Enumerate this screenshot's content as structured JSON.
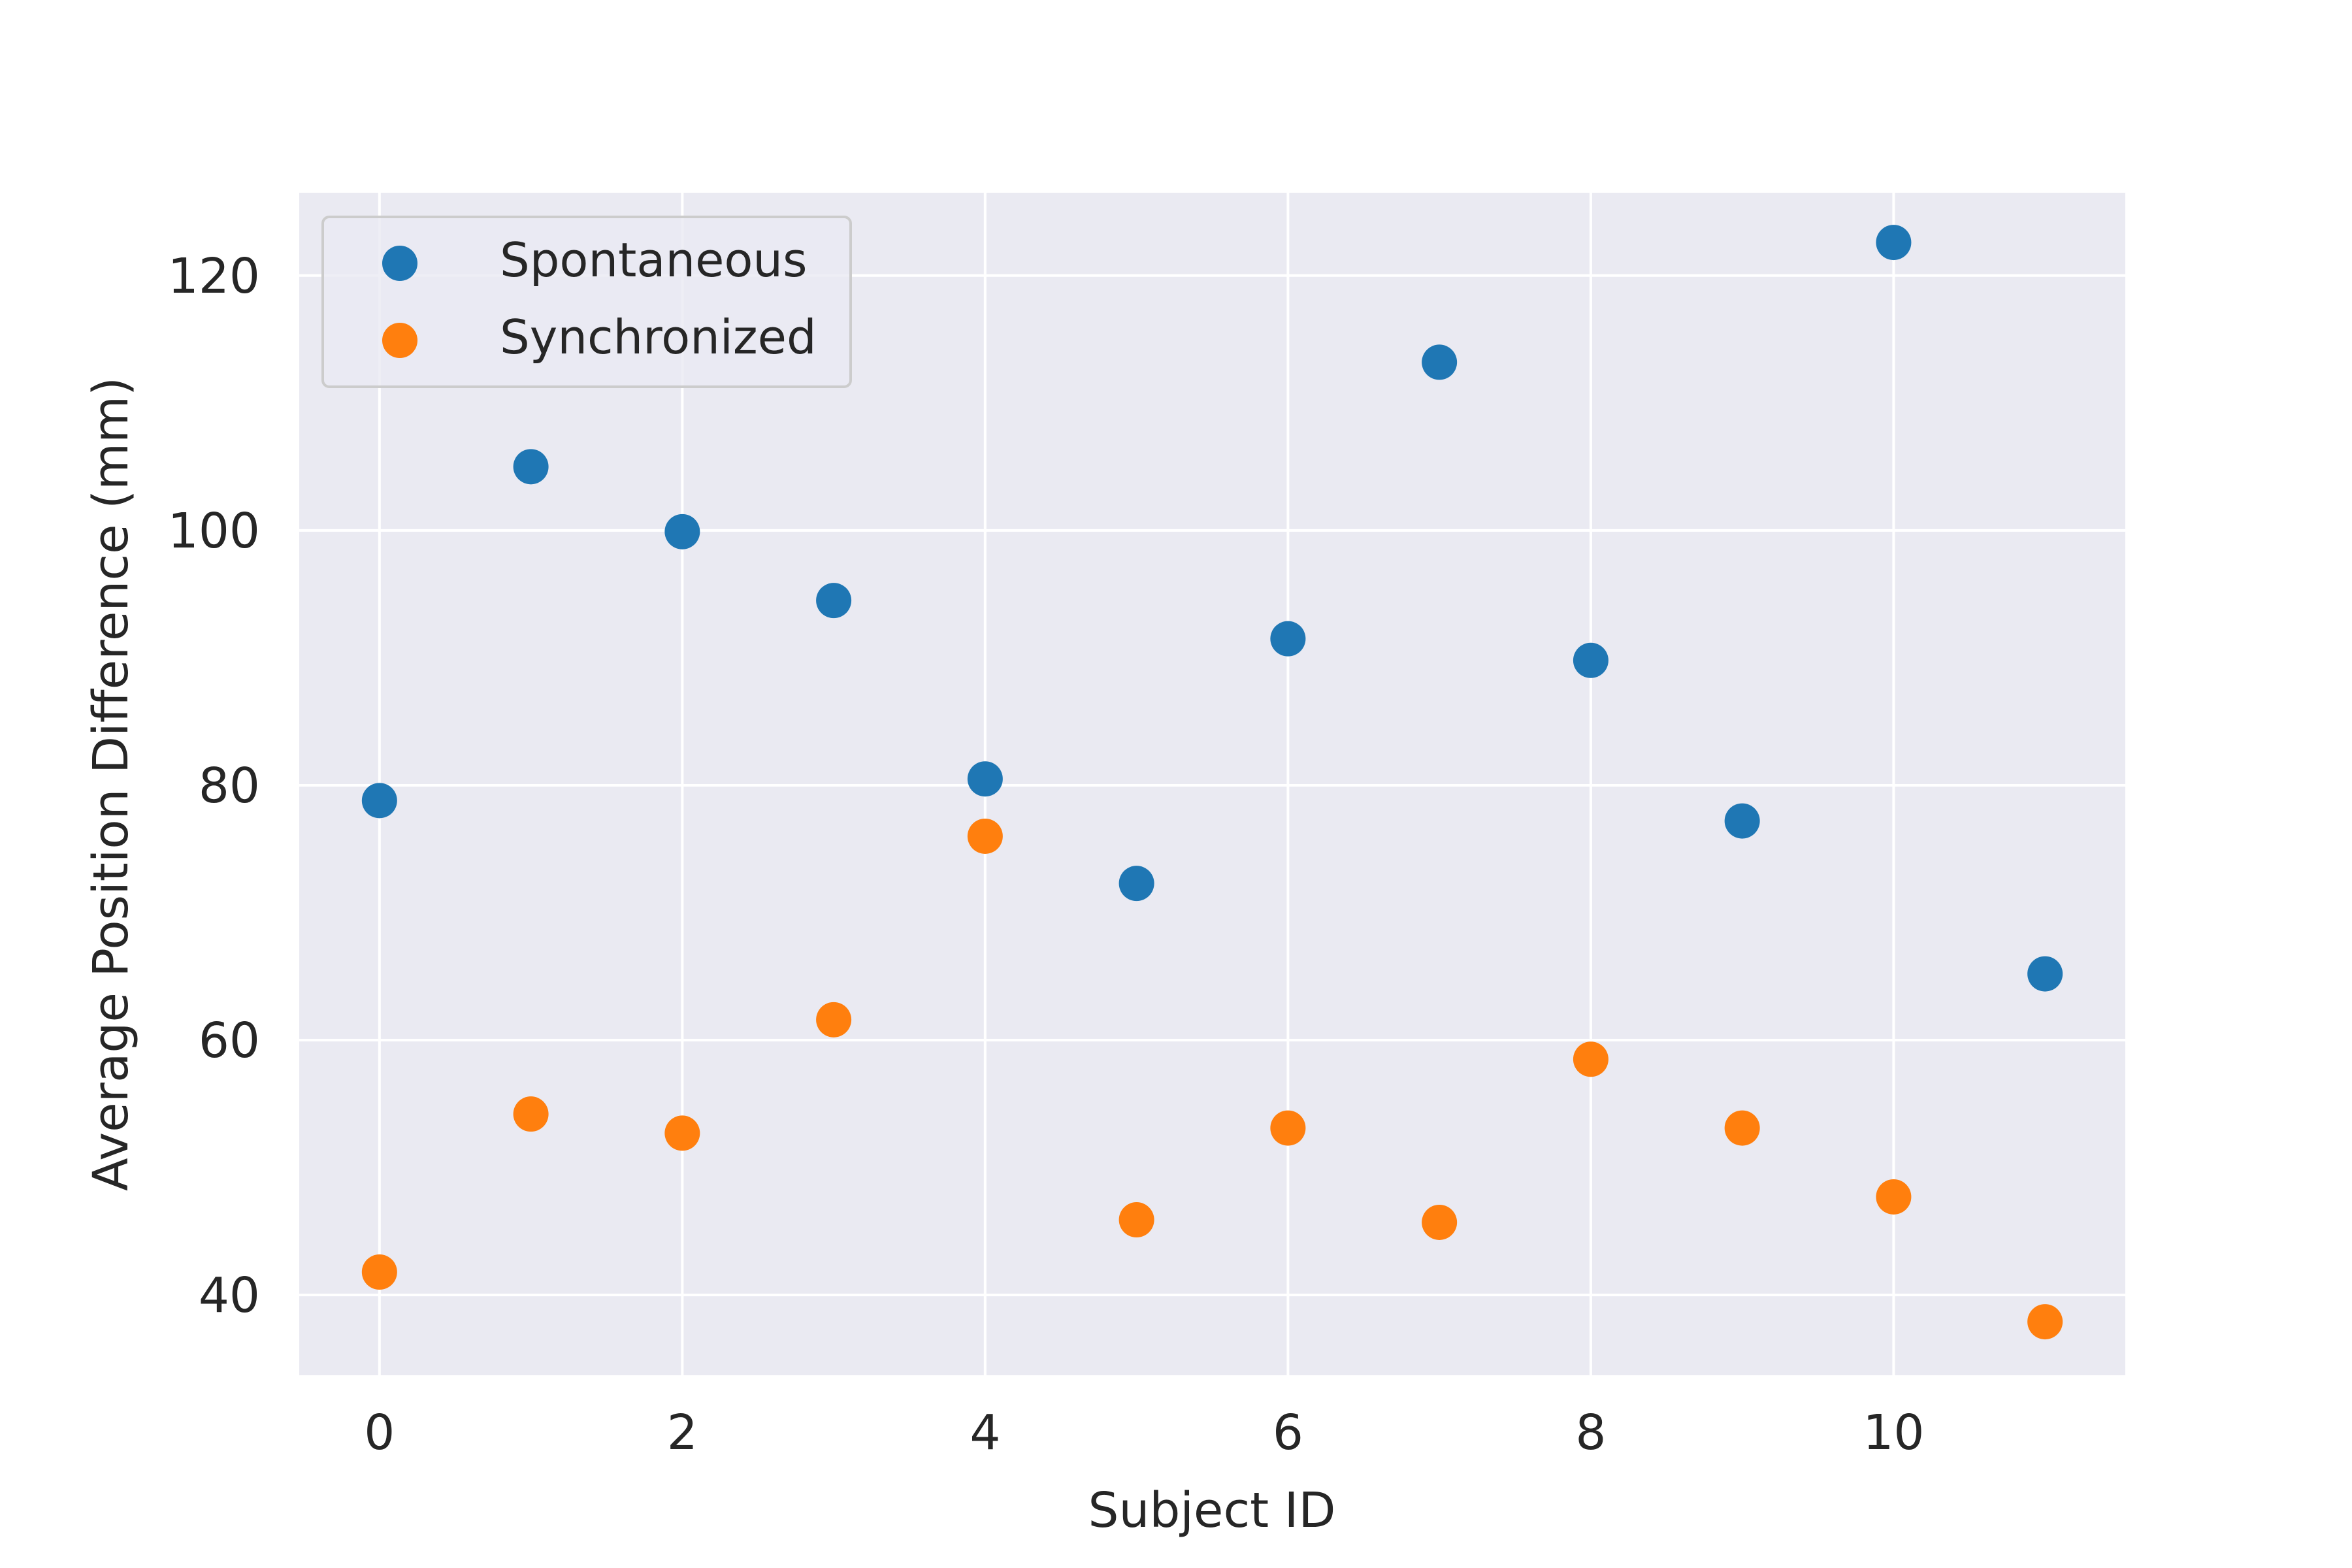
{
  "chart_data": {
    "type": "scatter",
    "title": "",
    "xlabel": "Subject ID",
    "ylabel": "Average Position Difference (mm)",
    "xlim": [
      -0.53,
      11.53
    ],
    "ylim": [
      33.7,
      126.5
    ],
    "xticks": [
      0,
      2,
      4,
      6,
      8,
      10
    ],
    "yticks": [
      40,
      60,
      80,
      100,
      120
    ],
    "grid": true,
    "legend_position": "top-left",
    "background": "#eaeaf2",
    "series": [
      {
        "name": "Spontaneous",
        "color": "#1f77b4",
        "x": [
          0,
          1,
          2,
          3,
          4,
          5,
          6,
          7,
          8,
          9,
          10,
          11
        ],
        "y": [
          78.8,
          105.0,
          99.9,
          94.5,
          80.5,
          72.3,
          91.5,
          113.2,
          89.8,
          77.2,
          122.6,
          65.2
        ]
      },
      {
        "name": "Synchronized",
        "color": "#ff7f0e",
        "x": [
          0,
          1,
          2,
          3,
          4,
          5,
          6,
          7,
          8,
          9,
          10,
          11
        ],
        "y": [
          41.8,
          54.2,
          52.7,
          61.6,
          76.0,
          45.9,
          53.1,
          45.7,
          58.5,
          53.1,
          47.7,
          37.9
        ]
      }
    ]
  }
}
